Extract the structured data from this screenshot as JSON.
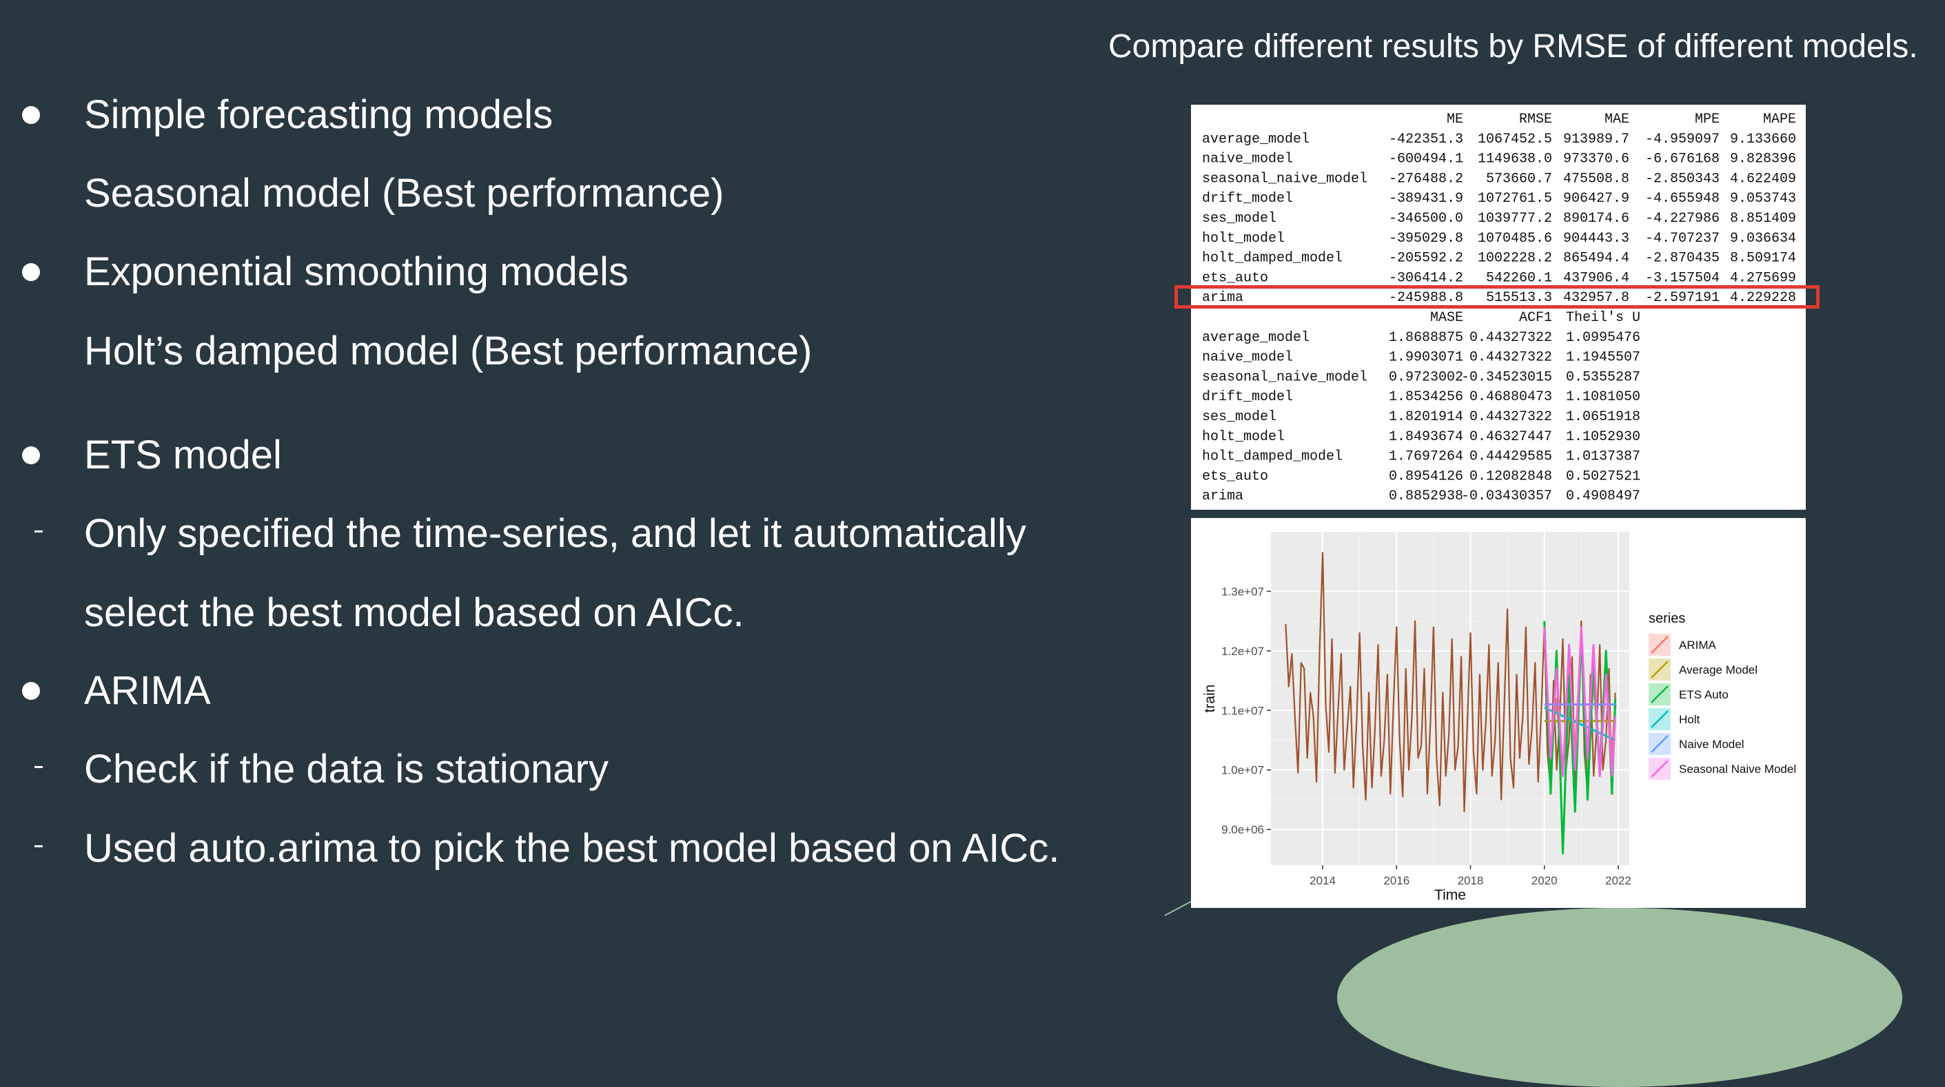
{
  "heading": "Compare different results by RMSE of different models.",
  "bullets": [
    {
      "marker": "dot",
      "text": "Simple forecasting models"
    },
    {
      "marker": "none",
      "text": "Seasonal model (Best performance)"
    },
    {
      "marker": "dot",
      "text": "Exponential smoothing models"
    },
    {
      "marker": "none",
      "text": "Holt’s damped model (Best performance)"
    },
    {
      "marker": "dot",
      "text": "ETS model"
    },
    {
      "marker": "dash",
      "text": "Only specified the time-series,  and let it automatically"
    },
    {
      "marker": "none",
      "text": "select the best model based on AICc."
    },
    {
      "marker": "dot",
      "text": "ARIMA"
    },
    {
      "marker": "dash",
      "text": "Check if the data is stationary"
    },
    {
      "marker": "dash",
      "text": "Used auto.arima to pick the best model based on AICc."
    }
  ],
  "accuracy_table": {
    "headers1": [
      "ME",
      "RMSE",
      "MAE",
      "MPE",
      "MAPE"
    ],
    "rows1": [
      [
        "average_model",
        "-422351.3",
        "1067452.5",
        "913989.7",
        "-4.959097",
        "9.133660"
      ],
      [
        "naive_model",
        "-600494.1",
        "1149638.0",
        "973370.6",
        "-6.676168",
        "9.828396"
      ],
      [
        "seasonal_naive_model",
        "-276488.2",
        "573660.7",
        "475508.8",
        "-2.850343",
        "4.622409"
      ],
      [
        "drift_model",
        "-389431.9",
        "1072761.5",
        "906427.9",
        "-4.655948",
        "9.053743"
      ],
      [
        "ses_model",
        "-346500.0",
        "1039777.2",
        "890174.6",
        "-4.227986",
        "8.851409"
      ],
      [
        "holt_model",
        "-395029.8",
        "1070485.6",
        "904443.3",
        "-4.707237",
        "9.036634"
      ],
      [
        "holt_damped_model",
        "-205592.2",
        "1002228.2",
        "865494.4",
        "-2.870435",
        "8.509174"
      ],
      [
        "ets_auto",
        "-306414.2",
        "542260.1",
        "437906.4",
        "-3.157504",
        "4.275699"
      ],
      [
        "arima",
        "-245988.8",
        "515513.3",
        "432957.8",
        "-2.597191",
        "4.229228"
      ]
    ],
    "highlight_row": "arima",
    "headers2": [
      "MASE",
      "ACF1",
      "Theil's U"
    ],
    "rows2": [
      [
        "average_model",
        "1.8688875",
        "0.44327322",
        "1.0995476"
      ],
      [
        "naive_model",
        "1.9903071",
        "0.44327322",
        "1.1945507"
      ],
      [
        "seasonal_naive_model",
        "0.9723002",
        "-0.34523015",
        "0.5355287"
      ],
      [
        "drift_model",
        "1.8534256",
        "0.46880473",
        "1.1081050"
      ],
      [
        "ses_model",
        "1.8201914",
        "0.44327322",
        "1.0651918"
      ],
      [
        "holt_model",
        "1.8493674",
        "0.46327447",
        "1.1052930"
      ],
      [
        "holt_damped_model",
        "1.7697264",
        "0.44429585",
        "1.0137387"
      ],
      [
        "ets_auto",
        "0.8954126",
        "0.12082848",
        "0.5027521"
      ],
      [
        "arima",
        "0.8852938",
        "-0.03430357",
        "0.4908497"
      ]
    ]
  },
  "chart_data": {
    "type": "line",
    "title": "",
    "xlabel": "Time",
    "ylabel": "train",
    "xlim": [
      2012.6,
      2022.3
    ],
    "ylim": [
      8400000,
      14000000
    ],
    "x_ticks": [
      2014,
      2016,
      2018,
      2020,
      2022
    ],
    "y_ticks": [
      9000000,
      10000000,
      11000000,
      12000000,
      13000000
    ],
    "y_tick_labels": [
      "9.0e+06",
      "1.0e+07",
      "1.1e+07",
      "1.2e+07",
      "1.3e+07"
    ],
    "grid": true,
    "legend_title": "series",
    "legend_position": "right",
    "train": {
      "color": "#a0522d",
      "x": [
        2013.0,
        2013.083,
        2013.167,
        2013.25,
        2013.333,
        2013.417,
        2013.5,
        2013.583,
        2013.667,
        2013.75,
        2013.833,
        2013.917,
        2014.0,
        2014.083,
        2014.167,
        2014.25,
        2014.333,
        2014.417,
        2014.5,
        2014.583,
        2014.667,
        2014.75,
        2014.833,
        2014.917,
        2015.0,
        2015.083,
        2015.167,
        2015.25,
        2015.333,
        2015.417,
        2015.5,
        2015.583,
        2015.667,
        2015.75,
        2015.833,
        2015.917,
        2016.0,
        2016.083,
        2016.167,
        2016.25,
        2016.333,
        2016.417,
        2016.5,
        2016.583,
        2016.667,
        2016.75,
        2016.833,
        2016.917,
        2017.0,
        2017.083,
        2017.167,
        2017.25,
        2017.333,
        2017.417,
        2017.5,
        2017.583,
        2017.667,
        2017.75,
        2017.833,
        2017.917,
        2018.0,
        2018.083,
        2018.167,
        2018.25,
        2018.333,
        2018.417,
        2018.5,
        2018.583,
        2018.667,
        2018.75,
        2018.833,
        2018.917,
        2019.0,
        2019.083,
        2019.167,
        2019.25,
        2019.333,
        2019.417,
        2019.5,
        2019.583,
        2019.667,
        2019.75,
        2019.833,
        2019.917,
        2020.0,
        2020.083,
        2020.167,
        2020.25,
        2020.333,
        2020.417,
        2020.5,
        2020.583,
        2020.667,
        2020.75,
        2020.833,
        2020.917,
        2021.0,
        2021.083,
        2021.167,
        2021.25,
        2021.333,
        2021.417,
        2021.5,
        2021.583,
        2021.667,
        2021.75,
        2021.833,
        2021.917
      ],
      "y": [
        12450000,
        11400000,
        11950000,
        10900000,
        9950000,
        11800000,
        11700000,
        10200000,
        11300000,
        10900000,
        9800000,
        12000000,
        13650000,
        11100000,
        10300000,
        12200000,
        9950000,
        11000000,
        11950000,
        10000000,
        10700000,
        11400000,
        9700000,
        10800000,
        12300000,
        10400000,
        9500000,
        11300000,
        9700000,
        10700000,
        12100000,
        9900000,
        10500000,
        11600000,
        9600000,
        11100000,
        12400000,
        10500000,
        9550000,
        11700000,
        10000000,
        10900000,
        12500000,
        10200000,
        10400000,
        11700000,
        9600000,
        10800000,
        12400000,
        10200000,
        9400000,
        11300000,
        9900000,
        10600000,
        12200000,
        10000000,
        10400000,
        11900000,
        9300000,
        10800000,
        12300000,
        10300000,
        9600000,
        11600000,
        10000000,
        10800000,
        12100000,
        9900000,
        10500000,
        11800000,
        9500000,
        11100000,
        12700000,
        10200000,
        9700000,
        11600000,
        10200000,
        10900000,
        12400000,
        10100000,
        10700000,
        11800000,
        9800000,
        11000000,
        12400000,
        10300000,
        9700000,
        11500000,
        10000000,
        10900000,
        12200000,
        10000000,
        10500000,
        11900000,
        9700000,
        10900000,
        12500000,
        10300000,
        9600000,
        11600000,
        9900000,
        10700000,
        12100000,
        10000000,
        10500000,
        11700000,
        9600000,
        11300000
      ]
    },
    "series": [
      {
        "name": "ARIMA",
        "color": "#f8766d",
        "x": [
          2020.0,
          2020.17,
          2020.33,
          2020.5,
          2020.67,
          2020.83,
          2021.0,
          2021.17,
          2021.33,
          2021.5,
          2021.67,
          2021.83,
          2021.92
        ],
        "y": [
          12300000,
          10200000,
          11200000,
          9900000,
          11800000,
          10300000,
          12200000,
          10000000,
          11500000,
          10100000,
          11900000,
          10200000,
          11100000
        ]
      },
      {
        "name": "Average Model",
        "color": "#b79f00",
        "x": [
          2020.0,
          2021.92
        ],
        "y": [
          10820000,
          10820000
        ]
      },
      {
        "name": "ETS Auto",
        "color": "#00ba38",
        "x": [
          2020.0,
          2020.17,
          2020.33,
          2020.5,
          2020.67,
          2020.83,
          2021.0,
          2021.17,
          2021.33,
          2021.5,
          2021.67,
          2021.83,
          2021.92
        ],
        "y": [
          12500000,
          9600000,
          12000000,
          8600000,
          11600000,
          9300000,
          12300000,
          9500000,
          11800000,
          9900000,
          12000000,
          9600000,
          11200000
        ]
      },
      {
        "name": "Holt",
        "color": "#00bfc4",
        "x": [
          2020.0,
          2021.92
        ],
        "y": [
          11050000,
          10500000
        ]
      },
      {
        "name": "Naive Model",
        "color": "#619cff",
        "x": [
          2020.0,
          2021.92
        ],
        "y": [
          11100000,
          11100000
        ]
      },
      {
        "name": "Seasonal Naive Model",
        "color": "#f564e3",
        "x": [
          2020.0,
          2020.17,
          2020.33,
          2020.5,
          2020.67,
          2020.83,
          2021.0,
          2021.17,
          2021.33,
          2021.5,
          2021.67,
          2021.83,
          2021.92
        ],
        "y": [
          12400000,
          10200000,
          11700000,
          9900000,
          12100000,
          10000000,
          12400000,
          10200000,
          12100000,
          9900000,
          11600000,
          9900000,
          10900000
        ]
      }
    ]
  }
}
